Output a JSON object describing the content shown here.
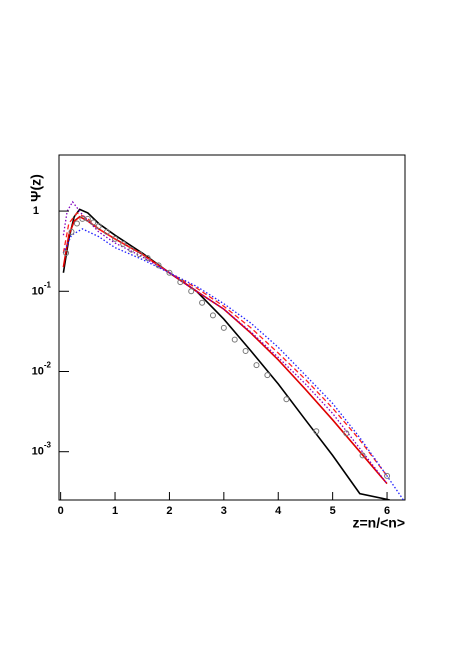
{
  "chart_data": {
    "type": "line",
    "x_label": "z=n/<n>",
    "y_label": "Ψ(z)",
    "log_y": true,
    "xlim": [
      -0.03,
      6.33
    ],
    "ylim": [
      0.00025,
      5
    ],
    "xticks": [
      0,
      1,
      2,
      3,
      4,
      5,
      6
    ],
    "yticks": [
      {
        "value": 0.001,
        "label": "10-3"
      },
      {
        "value": 0.01,
        "label": "10-2"
      },
      {
        "value": 0.1,
        "label": "10-1"
      },
      1
    ],
    "series": [
      {
        "style": "solid",
        "color": "#000000",
        "x": [
          0.05,
          0.15,
          0.25,
          0.35,
          0.5,
          0.7,
          1,
          1.5,
          2,
          2.5,
          3,
          3.5,
          4,
          4.5,
          5,
          5.5,
          6.05
        ],
        "values": [
          0.17,
          0.45,
          0.85,
          1.05,
          0.95,
          0.7,
          0.5,
          0.3,
          0.17,
          0.1,
          0.045,
          0.018,
          0.007,
          0.0025,
          0.0009,
          0.0003,
          0.00025
        ]
      },
      {
        "style": "solid",
        "color": "#e00000",
        "x": [
          0.05,
          0.15,
          0.25,
          0.35,
          0.5,
          0.7,
          1,
          1.5,
          2,
          2.5,
          3,
          3.5,
          4,
          4.5,
          5,
          5.5,
          6
        ],
        "values": [
          0.2,
          0.5,
          0.75,
          0.85,
          0.75,
          0.6,
          0.45,
          0.29,
          0.17,
          0.1,
          0.06,
          0.03,
          0.014,
          0.006,
          0.0025,
          0.001,
          0.0004
        ]
      },
      {
        "style": "dashed",
        "color": "#ff2020",
        "x": [
          0.05,
          0.15,
          0.3,
          0.5,
          0.7,
          1,
          1.5,
          2,
          2.5,
          3,
          3.5,
          4,
          4.5,
          5,
          5.5,
          6
        ],
        "values": [
          0.3,
          0.7,
          0.95,
          0.8,
          0.6,
          0.45,
          0.29,
          0.17,
          0.11,
          0.065,
          0.035,
          0.017,
          0.008,
          0.0035,
          0.0014,
          0.0005
        ]
      },
      {
        "style": "dotted",
        "color": "#2020ff",
        "x": [
          0.05,
          0.2,
          0.4,
          0.7,
          1,
          1.5,
          2,
          2.5,
          3,
          3.5,
          4,
          4.5,
          5,
          5.5,
          6,
          6.3
        ],
        "values": [
          0.3,
          0.5,
          0.6,
          0.48,
          0.35,
          0.25,
          0.17,
          0.115,
          0.07,
          0.04,
          0.02,
          0.009,
          0.004,
          0.0015,
          0.0005,
          0.00025
        ]
      },
      {
        "style": "dotted",
        "color": "#8000c0",
        "x": [
          0.05,
          0.12,
          0.22,
          0.4,
          0.7,
          1,
          1.5,
          2,
          2.5,
          3,
          3.5,
          4,
          4.5,
          5,
          5.5,
          6
        ],
        "values": [
          0.5,
          1.0,
          1.3,
          0.9,
          0.55,
          0.4,
          0.27,
          0.17,
          0.1,
          0.06,
          0.031,
          0.015,
          0.007,
          0.003,
          0.0011,
          0.0004
        ]
      },
      {
        "style": "points",
        "color": "#777777",
        "x": [
          0.1,
          0.2,
          0.3,
          0.4,
          0.5,
          0.6,
          0.7,
          0.85,
          1,
          1.15,
          1.3,
          1.45,
          1.6,
          1.8,
          2,
          2.2,
          2.4,
          2.6,
          2.8,
          3,
          3.2,
          3.4,
          3.6,
          3.8,
          4.15,
          4.7,
          5.25,
          5.55,
          6.0
        ],
        "values": [
          0.3,
          0.55,
          0.7,
          0.8,
          0.8,
          0.72,
          0.65,
          0.55,
          0.45,
          0.39,
          0.33,
          0.29,
          0.26,
          0.21,
          0.17,
          0.13,
          0.1,
          0.072,
          0.05,
          0.035,
          0.025,
          0.018,
          0.012,
          0.009,
          0.0045,
          0.0018,
          0.0017,
          0.0009,
          0.0005
        ]
      }
    ]
  }
}
